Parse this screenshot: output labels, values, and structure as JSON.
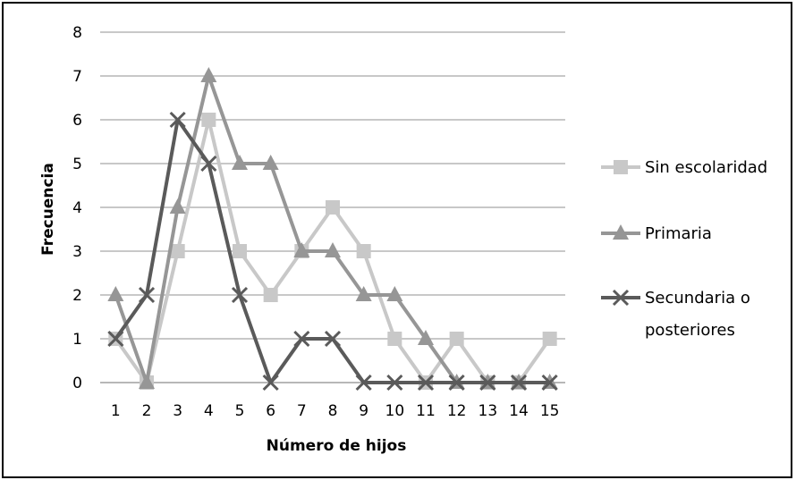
{
  "chart_data": {
    "type": "line",
    "x": [
      1,
      2,
      3,
      4,
      5,
      6,
      7,
      8,
      9,
      10,
      11,
      12,
      13,
      14,
      15
    ],
    "xlabel": "Número de hijos",
    "ylabel": "Frecuencia",
    "ylim": [
      0,
      8
    ],
    "yticks": [
      0,
      1,
      2,
      3,
      4,
      5,
      6,
      7,
      8
    ],
    "grid": "horizontal",
    "legend_position": "right",
    "series": [
      {
        "name": "Sin escolaridad",
        "marker": "square",
        "color": "#c8c8c8",
        "values": [
          1,
          0,
          3,
          6,
          3,
          2,
          3,
          4,
          3,
          1,
          0,
          1,
          0,
          0,
          1
        ]
      },
      {
        "name": "Primaria",
        "marker": "triangle",
        "color": "#969696",
        "values": [
          2,
          0,
          4,
          7,
          5,
          5,
          3,
          3,
          2,
          2,
          1,
          0,
          0,
          0,
          0
        ]
      },
      {
        "name": "Secundaria o posteriores",
        "marker": "x",
        "color": "#5a5a5a",
        "values": [
          1,
          2,
          6,
          5,
          2,
          0,
          1,
          1,
          0,
          0,
          0,
          0,
          0,
          0,
          0
        ]
      }
    ],
    "legend": [
      {
        "lines": [
          "Sin escolaridad"
        ]
      },
      {
        "lines": [
          "Primaria"
        ]
      },
      {
        "lines": [
          "Secundaria o",
          "posteriores"
        ]
      }
    ]
  }
}
